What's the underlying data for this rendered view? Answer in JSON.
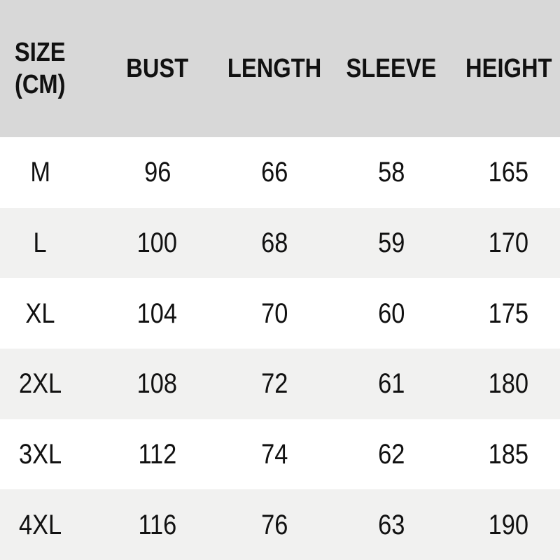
{
  "colors": {
    "header_bg": "#d8d8d8",
    "row_bg": "#ffffff",
    "row_alt_bg": "#f1f1f0",
    "text": "#111111"
  },
  "labels": {
    "size_header_two_line": "SIZE\n(CM)"
  },
  "chart_data": {
    "type": "table",
    "columns": [
      "SIZE (CM)",
      "BUST",
      "LENGTH",
      "SLEEVE",
      "HEIGHT"
    ],
    "rows": [
      [
        "M",
        "96",
        "66",
        "58",
        "165"
      ],
      [
        "L",
        "100",
        "68",
        "59",
        "170"
      ],
      [
        "XL",
        "104",
        "70",
        "60",
        "175"
      ],
      [
        "2XL",
        "108",
        "72",
        "61",
        "180"
      ],
      [
        "3XL",
        "112",
        "74",
        "62",
        "185"
      ],
      [
        "4XL",
        "116",
        "76",
        "63",
        "190"
      ]
    ],
    "layout": {
      "header_background": "#d8d8d8",
      "alternating_row_backgrounds": [
        "#ffffff",
        "#f1f1f0"
      ],
      "grid": false
    }
  }
}
